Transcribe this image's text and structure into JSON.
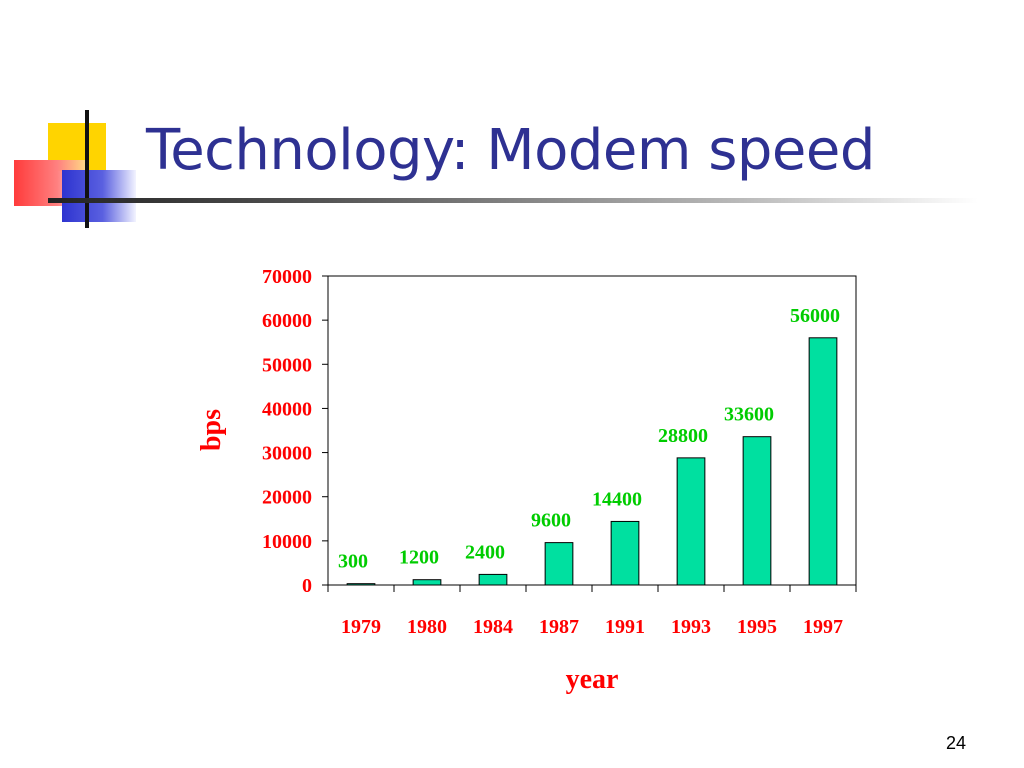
{
  "slide": {
    "title": "Technology: Modem speed",
    "page_number": "24"
  },
  "colors": {
    "title": "#2e3192",
    "bar": "#00e0a0",
    "axis_text": "#ff0000",
    "data_label": "#00cc00"
  },
  "chart_data": {
    "type": "bar",
    "categories": [
      "1979",
      "1980",
      "1984",
      "1987",
      "1991",
      "1993",
      "1995",
      "1997"
    ],
    "values": [
      300,
      1200,
      2400,
      9600,
      14400,
      28800,
      33600,
      56000
    ],
    "data_labels": [
      "300",
      "1200",
      "2400",
      "9600",
      "14400",
      "28800",
      "33600",
      "56000"
    ],
    "title": "",
    "xlabel": "year",
    "ylabel": "bps",
    "ylim": [
      0,
      70000
    ],
    "yticks": [
      "0",
      "10000",
      "20000",
      "30000",
      "40000",
      "50000",
      "60000",
      "70000"
    ],
    "grid": false,
    "legend": "none"
  }
}
